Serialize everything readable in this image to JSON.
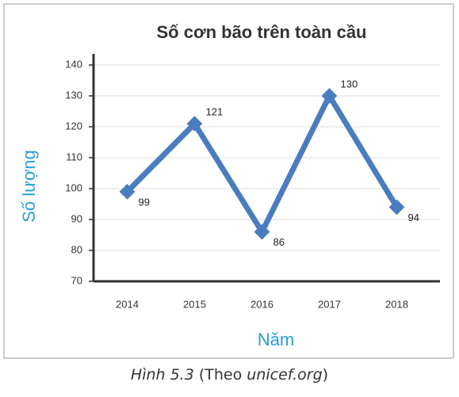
{
  "chart_data": {
    "type": "line",
    "title": "Số cơn bão trên toàn cầu",
    "x_label": "Năm",
    "y_label": "Số lượng",
    "categories": [
      "2014",
      "2015",
      "2016",
      "2017",
      "2018"
    ],
    "series": [
      {
        "color": "#4a7cc0",
        "values": [
          99,
          121,
          86,
          130,
          94
        ]
      }
    ],
    "ylim": [
      70,
      140
    ],
    "yticks": [
      70,
      80,
      90,
      100,
      110,
      120,
      130,
      140
    ],
    "grid": true
  },
  "caption": [
    "Hình 5.3",
    "(Theo",
    "unicef.org",
    ")"
  ]
}
